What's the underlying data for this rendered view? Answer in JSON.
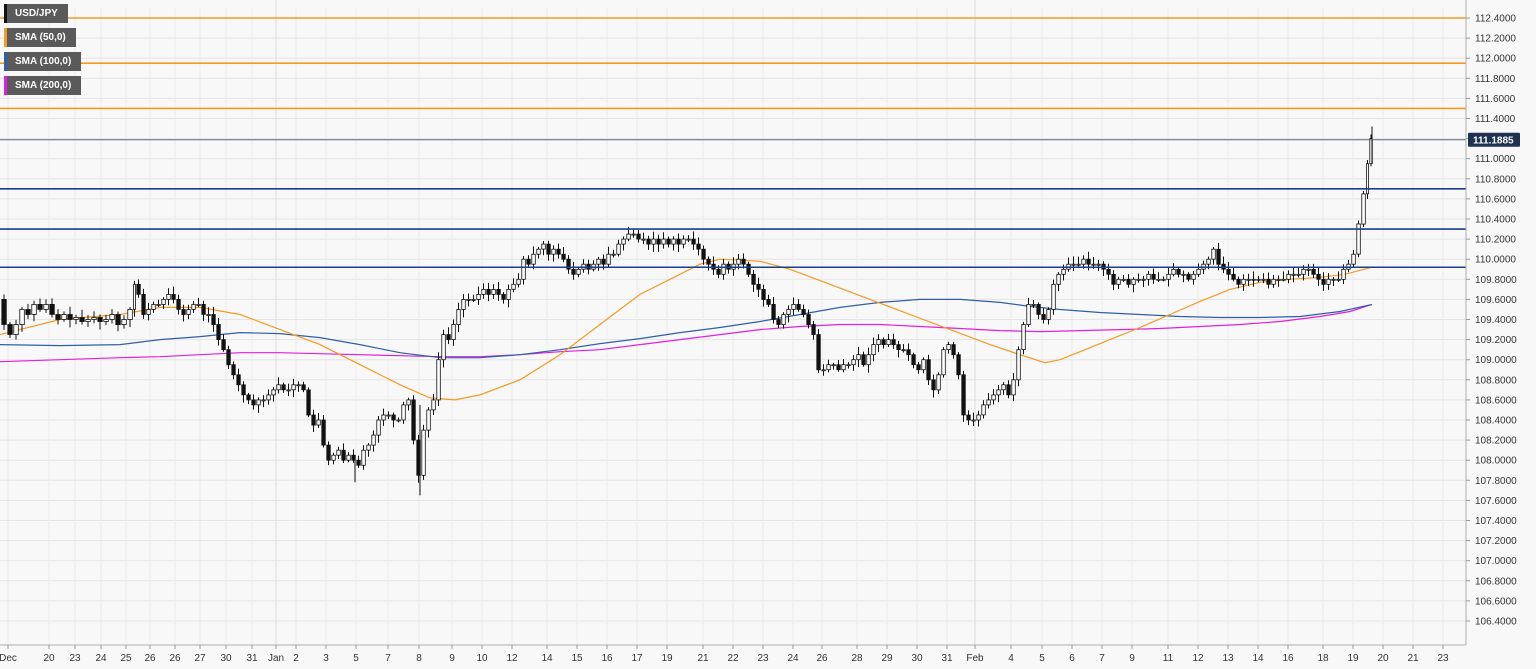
{
  "chart_data": {
    "type": "candlestick",
    "title": "USD/JPY",
    "symbol": "USD/JPY",
    "legend": [
      {
        "label": "USD/JPY",
        "color": "#111111"
      },
      {
        "label": "SMA (50,0)",
        "color": "#f59a23"
      },
      {
        "label": "SMA (100,0)",
        "color": "#2e5fa8"
      },
      {
        "label": "SMA (200,0)",
        "color": "#e020e0"
      }
    ],
    "legend_position": "top-left",
    "ylim": [
      106.4,
      112.5
    ],
    "y_ticks": [
      "112.4000",
      "112.2000",
      "112.0000",
      "111.8000",
      "111.6000",
      "111.4000",
      "111.2000",
      "111.0000",
      "110.8000",
      "110.6000",
      "110.4000",
      "110.2000",
      "110.0000",
      "109.8000",
      "109.6000",
      "109.4000",
      "109.2000",
      "109.0000",
      "108.8000",
      "108.6000",
      "108.4000",
      "108.2000",
      "108.0000",
      "107.8000",
      "107.6000",
      "107.4000",
      "107.2000",
      "107.0000",
      "106.8000",
      "106.6000",
      "106.4000"
    ],
    "x_ticks": [
      "Dec",
      "20",
      "23",
      "24",
      "25",
      "26",
      "26",
      "27",
      "30",
      "31",
      "Jan",
      "2",
      "3",
      "5",
      "7",
      "8",
      "9",
      "10",
      "12",
      "14",
      "15",
      "16",
      "17",
      "19",
      "21",
      "22",
      "23",
      "24",
      "26",
      "28",
      "29",
      "30",
      "31",
      "Feb",
      "4",
      "5",
      "6",
      "7",
      "9",
      "11",
      "12",
      "13",
      "14",
      "16",
      "18",
      "19",
      "20",
      "21",
      "23"
    ],
    "last_price": "111.1885",
    "last_price_value": 111.1885,
    "grid": true,
    "horizontal_levels": [
      {
        "value": 112.4,
        "color": "#f59a23"
      },
      {
        "value": 111.95,
        "color": "#f59a23"
      },
      {
        "value": 111.5,
        "color": "#f59a23"
      },
      {
        "value": 110.7,
        "color": "#1a3f8a"
      },
      {
        "value": 110.3,
        "color": "#1a3f8a"
      },
      {
        "value": 109.92,
        "color": "#1a3f8a"
      },
      {
        "value": 111.1885,
        "color": "#5a6a80"
      }
    ],
    "close_path": [
      [
        0,
        109.6
      ],
      [
        6,
        109.35
      ],
      [
        12,
        109.25
      ],
      [
        18,
        109.35
      ],
      [
        24,
        109.5
      ],
      [
        30,
        109.45
      ],
      [
        36,
        109.55
      ],
      [
        42,
        109.5
      ],
      [
        48,
        109.55
      ],
      [
        54,
        109.45
      ],
      [
        60,
        109.4
      ],
      [
        66,
        109.45
      ],
      [
        72,
        109.4
      ],
      [
        78,
        109.42
      ],
      [
        84,
        109.38
      ],
      [
        90,
        109.4
      ],
      [
        96,
        109.42
      ],
      [
        102,
        109.38
      ],
      [
        108,
        109.4
      ],
      [
        114,
        109.45
      ],
      [
        120,
        109.35
      ],
      [
        126,
        109.4
      ],
      [
        132,
        109.5
      ],
      [
        135,
        109.75
      ],
      [
        140,
        109.65
      ],
      [
        145,
        109.45
      ],
      [
        150,
        109.5
      ],
      [
        155,
        109.55
      ],
      [
        160,
        109.55
      ],
      [
        165,
        109.6
      ],
      [
        170,
        109.65
      ],
      [
        175,
        109.6
      ],
      [
        180,
        109.5
      ],
      [
        185,
        109.45
      ],
      [
        190,
        109.5
      ],
      [
        195,
        109.55
      ],
      [
        200,
        109.55
      ],
      [
        205,
        109.45
      ],
      [
        210,
        109.45
      ],
      [
        215,
        109.35
      ],
      [
        220,
        109.2
      ],
      [
        225,
        109.1
      ],
      [
        230,
        108.95
      ],
      [
        235,
        108.85
      ],
      [
        240,
        108.75
      ],
      [
        245,
        108.65
      ],
      [
        250,
        108.6
      ],
      [
        255,
        108.55
      ],
      [
        260,
        108.6
      ],
      [
        265,
        108.6
      ],
      [
        270,
        108.65
      ],
      [
        275,
        108.7
      ],
      [
        280,
        108.75
      ],
      [
        285,
        108.7
      ],
      [
        290,
        108.7
      ],
      [
        295,
        108.75
      ],
      [
        300,
        108.75
      ],
      [
        305,
        108.7
      ],
      [
        310,
        108.45
      ],
      [
        315,
        108.35
      ],
      [
        320,
        108.4
      ],
      [
        325,
        108.15
      ],
      [
        330,
        108.0
      ],
      [
        335,
        108.05
      ],
      [
        340,
        108.1
      ],
      [
        345,
        108.0
      ],
      [
        350,
        108.05
      ],
      [
        355,
        108.0
      ],
      [
        360,
        107.95
      ],
      [
        365,
        108.1
      ],
      [
        370,
        108.15
      ],
      [
        375,
        108.25
      ],
      [
        380,
        108.4
      ],
      [
        385,
        108.45
      ],
      [
        390,
        108.45
      ],
      [
        395,
        108.4
      ],
      [
        400,
        108.4
      ],
      [
        405,
        108.55
      ],
      [
        410,
        108.6
      ],
      [
        415,
        108.2
      ],
      [
        420,
        107.85
      ],
      [
        425,
        108.3
      ],
      [
        430,
        108.5
      ],
      [
        435,
        108.6
      ],
      [
        440,
        109.0
      ],
      [
        445,
        109.25
      ],
      [
        450,
        109.2
      ],
      [
        455,
        109.35
      ],
      [
        460,
        109.5
      ],
      [
        465,
        109.6
      ],
      [
        470,
        109.6
      ],
      [
        475,
        109.6
      ],
      [
        480,
        109.65
      ],
      [
        485,
        109.7
      ],
      [
        490,
        109.65
      ],
      [
        495,
        109.7
      ],
      [
        500,
        109.65
      ],
      [
        505,
        109.6
      ],
      [
        510,
        109.7
      ],
      [
        515,
        109.75
      ],
      [
        520,
        109.8
      ],
      [
        525,
        110.0
      ],
      [
        530,
        109.95
      ],
      [
        535,
        110.05
      ],
      [
        540,
        110.1
      ],
      [
        545,
        110.15
      ],
      [
        550,
        110.05
      ],
      [
        555,
        110.1
      ],
      [
        560,
        110.05
      ],
      [
        565,
        110.0
      ],
      [
        570,
        109.9
      ],
      [
        575,
        109.85
      ],
      [
        580,
        109.9
      ],
      [
        585,
        109.95
      ],
      [
        590,
        109.9
      ],
      [
        595,
        109.95
      ],
      [
        600,
        110.0
      ],
      [
        605,
        109.95
      ],
      [
        610,
        110.05
      ],
      [
        615,
        110.05
      ],
      [
        620,
        110.15
      ],
      [
        625,
        110.2
      ],
      [
        630,
        110.25
      ],
      [
        635,
        110.25
      ],
      [
        640,
        110.2
      ],
      [
        645,
        110.2
      ],
      [
        650,
        110.15
      ],
      [
        655,
        110.2
      ],
      [
        660,
        110.15
      ],
      [
        665,
        110.2
      ],
      [
        670,
        110.15
      ],
      [
        675,
        110.2
      ],
      [
        680,
        110.15
      ],
      [
        685,
        110.2
      ],
      [
        690,
        110.2
      ],
      [
        695,
        110.15
      ],
      [
        700,
        110.1
      ],
      [
        705,
        110.0
      ],
      [
        710,
        109.95
      ],
      [
        715,
        109.9
      ],
      [
        720,
        109.85
      ],
      [
        725,
        109.95
      ],
      [
        730,
        109.9
      ],
      [
        735,
        109.95
      ],
      [
        740,
        110.0
      ],
      [
        745,
        109.95
      ],
      [
        750,
        109.85
      ],
      [
        755,
        109.75
      ],
      [
        760,
        109.7
      ],
      [
        765,
        109.6
      ],
      [
        770,
        109.55
      ],
      [
        775,
        109.4
      ],
      [
        780,
        109.35
      ],
      [
        785,
        109.45
      ],
      [
        790,
        109.5
      ],
      [
        795,
        109.55
      ],
      [
        800,
        109.5
      ],
      [
        805,
        109.45
      ],
      [
        810,
        109.35
      ],
      [
        815,
        109.25
      ],
      [
        820,
        108.9
      ],
      [
        825,
        108.9
      ],
      [
        830,
        108.95
      ],
      [
        835,
        108.95
      ],
      [
        840,
        108.9
      ],
      [
        845,
        108.95
      ],
      [
        850,
        108.95
      ],
      [
        855,
        109.0
      ],
      [
        860,
        109.05
      ],
      [
        865,
        108.95
      ],
      [
        870,
        109.05
      ],
      [
        875,
        109.15
      ],
      [
        880,
        109.2
      ],
      [
        885,
        109.15
      ],
      [
        890,
        109.2
      ],
      [
        895,
        109.15
      ],
      [
        900,
        109.1
      ],
      [
        905,
        109.1
      ],
      [
        910,
        109.05
      ],
      [
        915,
        108.95
      ],
      [
        920,
        108.9
      ],
      [
        925,
        109.0
      ],
      [
        930,
        108.8
      ],
      [
        935,
        108.7
      ],
      [
        940,
        108.85
      ],
      [
        945,
        109.1
      ],
      [
        950,
        109.15
      ],
      [
        955,
        109.05
      ],
      [
        960,
        108.85
      ],
      [
        965,
        108.45
      ],
      [
        970,
        108.4
      ],
      [
        975,
        108.4
      ],
      [
        980,
        108.45
      ],
      [
        985,
        108.55
      ],
      [
        990,
        108.6
      ],
      [
        995,
        108.65
      ],
      [
        1000,
        108.7
      ],
      [
        1005,
        108.75
      ],
      [
        1010,
        108.65
      ],
      [
        1015,
        108.8
      ],
      [
        1020,
        109.1
      ],
      [
        1025,
        109.35
      ],
      [
        1030,
        109.55
      ],
      [
        1035,
        109.55
      ],
      [
        1040,
        109.45
      ],
      [
        1045,
        109.4
      ],
      [
        1050,
        109.5
      ],
      [
        1055,
        109.75
      ],
      [
        1060,
        109.85
      ],
      [
        1065,
        109.9
      ],
      [
        1070,
        109.95
      ],
      [
        1075,
        109.95
      ],
      [
        1080,
        109.95
      ],
      [
        1085,
        110.0
      ],
      [
        1090,
        109.95
      ],
      [
        1095,
        109.95
      ],
      [
        1100,
        109.95
      ],
      [
        1105,
        109.9
      ],
      [
        1110,
        109.85
      ],
      [
        1115,
        109.75
      ],
      [
        1120,
        109.8
      ],
      [
        1125,
        109.8
      ],
      [
        1130,
        109.75
      ],
      [
        1135,
        109.8
      ],
      [
        1140,
        109.8
      ],
      [
        1145,
        109.8
      ],
      [
        1150,
        109.85
      ],
      [
        1155,
        109.8
      ],
      [
        1160,
        109.8
      ],
      [
        1165,
        109.8
      ],
      [
        1170,
        109.85
      ],
      [
        1175,
        109.9
      ],
      [
        1180,
        109.85
      ],
      [
        1185,
        109.85
      ],
      [
        1190,
        109.8
      ],
      [
        1195,
        109.85
      ],
      [
        1200,
        109.9
      ],
      [
        1205,
        109.95
      ],
      [
        1210,
        110.0
      ],
      [
        1215,
        110.1
      ],
      [
        1220,
        109.95
      ],
      [
        1225,
        109.9
      ],
      [
        1230,
        109.85
      ],
      [
        1235,
        109.8
      ],
      [
        1240,
        109.75
      ],
      [
        1245,
        109.8
      ],
      [
        1250,
        109.8
      ],
      [
        1255,
        109.8
      ],
      [
        1260,
        109.8
      ],
      [
        1265,
        109.8
      ],
      [
        1270,
        109.75
      ],
      [
        1275,
        109.8
      ],
      [
        1280,
        109.8
      ],
      [
        1285,
        109.8
      ],
      [
        1290,
        109.85
      ],
      [
        1295,
        109.85
      ],
      [
        1300,
        109.85
      ],
      [
        1305,
        109.9
      ],
      [
        1310,
        109.9
      ],
      [
        1315,
        109.85
      ],
      [
        1320,
        109.8
      ],
      [
        1325,
        109.75
      ],
      [
        1330,
        109.8
      ],
      [
        1335,
        109.8
      ],
      [
        1340,
        109.8
      ],
      [
        1345,
        109.9
      ],
      [
        1350,
        109.95
      ],
      [
        1355,
        110.05
      ],
      [
        1360,
        110.35
      ],
      [
        1365,
        110.65
      ],
      [
        1368,
        110.95
      ],
      [
        1372,
        111.2
      ]
    ],
    "sma50": [
      [
        0,
        109.25
      ],
      [
        60,
        109.4
      ],
      [
        120,
        109.45
      ],
      [
        160,
        109.52
      ],
      [
        200,
        109.52
      ],
      [
        240,
        109.45
      ],
      [
        280,
        109.3
      ],
      [
        320,
        109.15
      ],
      [
        360,
        108.95
      ],
      [
        400,
        108.75
      ],
      [
        430,
        108.62
      ],
      [
        455,
        108.6
      ],
      [
        480,
        108.65
      ],
      [
        520,
        108.8
      ],
      [
        560,
        109.05
      ],
      [
        600,
        109.35
      ],
      [
        640,
        109.65
      ],
      [
        680,
        109.85
      ],
      [
        700,
        109.95
      ],
      [
        720,
        110.0
      ],
      [
        760,
        109.98
      ],
      [
        790,
        109.9
      ],
      [
        830,
        109.75
      ],
      [
        870,
        109.6
      ],
      [
        910,
        109.45
      ],
      [
        950,
        109.3
      ],
      [
        990,
        109.15
      ],
      [
        1020,
        109.05
      ],
      [
        1045,
        108.97
      ],
      [
        1060,
        109.0
      ],
      [
        1080,
        109.08
      ],
      [
        1110,
        109.2
      ],
      [
        1140,
        109.32
      ],
      [
        1170,
        109.45
      ],
      [
        1200,
        109.58
      ],
      [
        1230,
        109.7
      ],
      [
        1260,
        109.77
      ],
      [
        1290,
        109.8
      ],
      [
        1320,
        109.82
      ],
      [
        1345,
        109.85
      ],
      [
        1372,
        109.92
      ]
    ],
    "sma100": [
      [
        0,
        109.15
      ],
      [
        60,
        109.14
      ],
      [
        120,
        109.15
      ],
      [
        160,
        109.2
      ],
      [
        200,
        109.23
      ],
      [
        240,
        109.27
      ],
      [
        280,
        109.26
      ],
      [
        320,
        109.22
      ],
      [
        360,
        109.15
      ],
      [
        400,
        109.07
      ],
      [
        440,
        109.02
      ],
      [
        480,
        109.02
      ],
      [
        520,
        109.05
      ],
      [
        560,
        109.1
      ],
      [
        600,
        109.16
      ],
      [
        640,
        109.21
      ],
      [
        680,
        109.27
      ],
      [
        720,
        109.32
      ],
      [
        760,
        109.38
      ],
      [
        800,
        109.45
      ],
      [
        840,
        109.52
      ],
      [
        880,
        109.57
      ],
      [
        920,
        109.6
      ],
      [
        960,
        109.6
      ],
      [
        1000,
        109.57
      ],
      [
        1030,
        109.53
      ],
      [
        1060,
        109.5
      ],
      [
        1100,
        109.47
      ],
      [
        1140,
        109.45
      ],
      [
        1180,
        109.43
      ],
      [
        1220,
        109.42
      ],
      [
        1260,
        109.42
      ],
      [
        1300,
        109.43
      ],
      [
        1340,
        109.48
      ],
      [
        1372,
        109.55
      ]
    ],
    "sma200": [
      [
        0,
        108.98
      ],
      [
        60,
        109.0
      ],
      [
        120,
        109.02
      ],
      [
        160,
        109.03
      ],
      [
        200,
        109.05
      ],
      [
        240,
        109.07
      ],
      [
        280,
        109.07
      ],
      [
        320,
        109.06
      ],
      [
        360,
        109.05
      ],
      [
        400,
        109.04
      ],
      [
        440,
        109.03
      ],
      [
        480,
        109.03
      ],
      [
        520,
        109.05
      ],
      [
        560,
        109.08
      ],
      [
        600,
        109.1
      ],
      [
        640,
        109.15
      ],
      [
        680,
        109.2
      ],
      [
        720,
        109.25
      ],
      [
        760,
        109.3
      ],
      [
        800,
        109.33
      ],
      [
        840,
        109.35
      ],
      [
        880,
        109.35
      ],
      [
        920,
        109.33
      ],
      [
        960,
        109.31
      ],
      [
        1000,
        109.29
      ],
      [
        1040,
        109.28
      ],
      [
        1080,
        109.29
      ],
      [
        1120,
        109.3
      ],
      [
        1160,
        109.31
      ],
      [
        1200,
        109.33
      ],
      [
        1240,
        109.35
      ],
      [
        1280,
        109.38
      ],
      [
        1320,
        109.43
      ],
      [
        1350,
        109.48
      ],
      [
        1372,
        109.55
      ]
    ]
  }
}
